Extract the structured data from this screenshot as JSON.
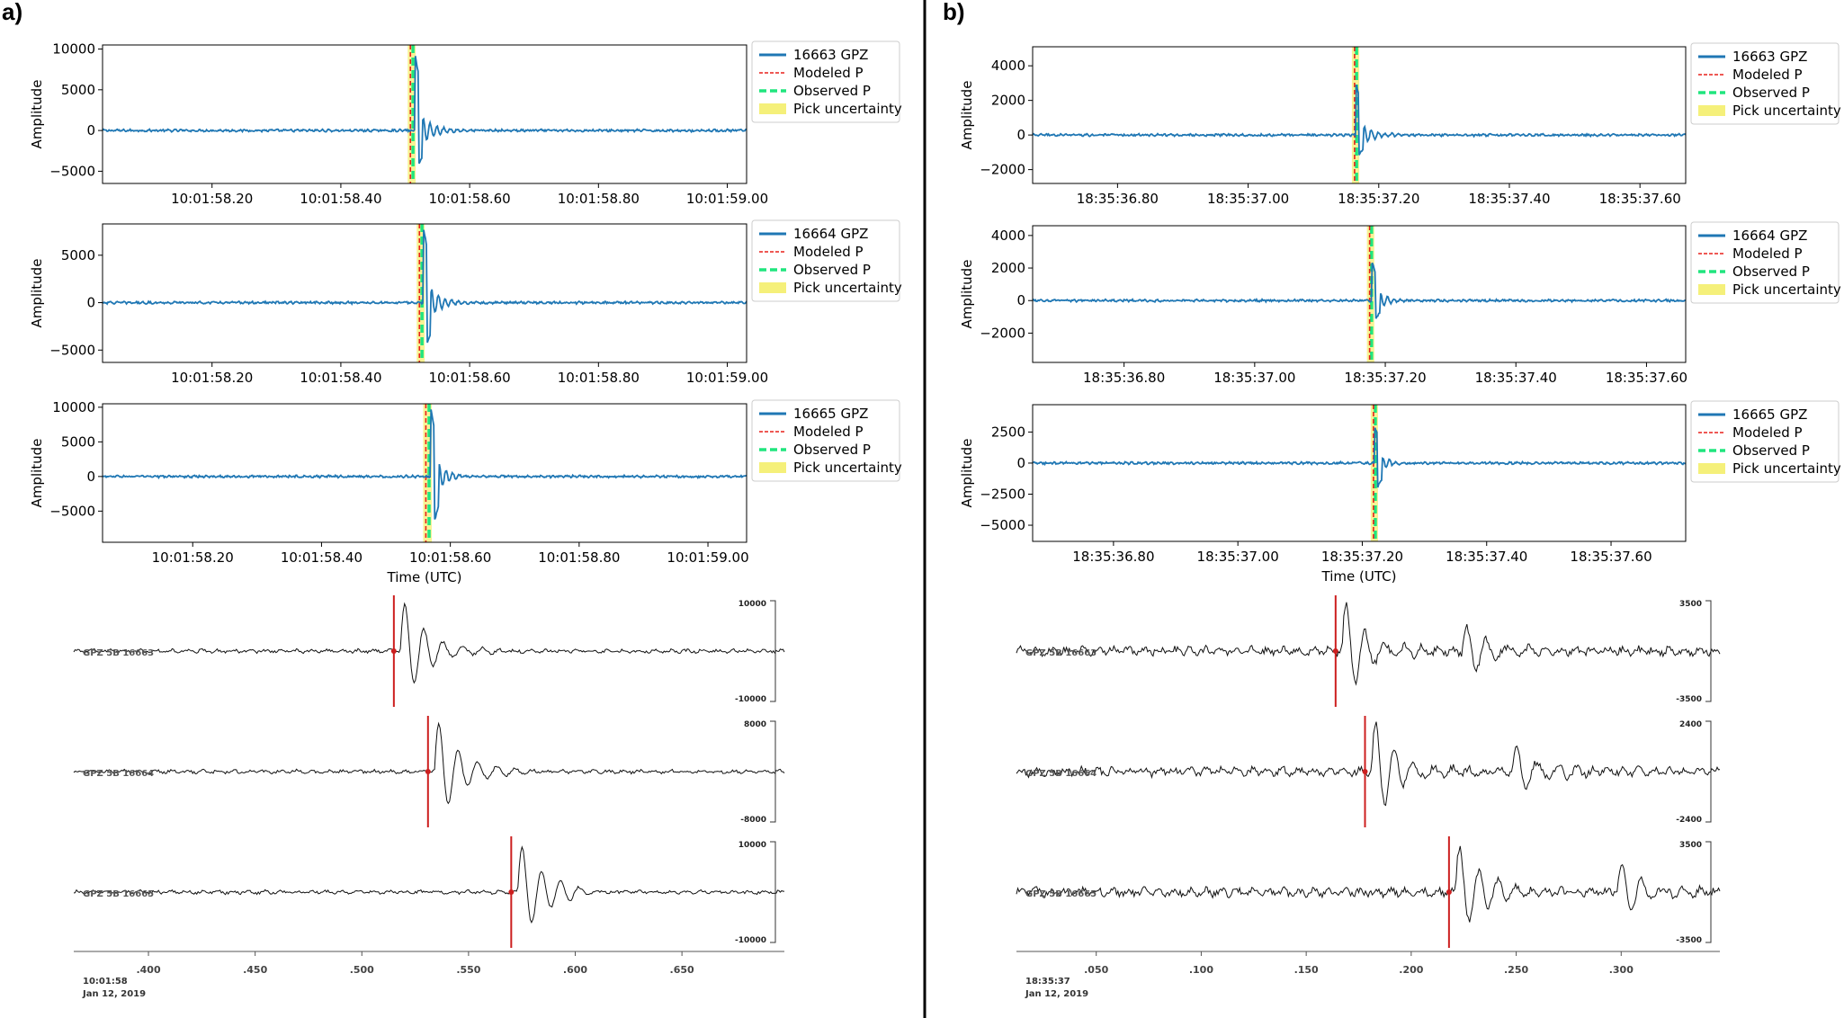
{
  "panels": [
    {
      "label": "a)",
      "chart_data": [
        {
          "type": "line",
          "ylabel": "Amplitude",
          "xlim": [
            "10:01:58.03",
            "10:01:59.03"
          ],
          "ylim": [
            -6500,
            10500
          ],
          "yticks": [
            10000,
            5000,
            0,
            -5000
          ],
          "ytick_labels": [
            "10000",
            "5000",
            "0",
            "−5000"
          ],
          "xticks": [
            "10:01:58.20",
            "10:01:58.40",
            "10:01:58.60",
            "10:01:58.80",
            "10:01:59.00"
          ],
          "xtick_labels": [
            "10:01:58.20",
            "10:01:58.40",
            "10:01:58.60",
            "10:01:58.80",
            "10:01:59.00"
          ],
          "series": [
            {
              "name": "16663 GPZ",
              "color": "#1f77b4",
              "onset_time": "10:01:58.515",
              "peak_amplitude": 9500,
              "trough_amplitude": -6000
            }
          ],
          "modeled_p": "10:01:58.508",
          "observed_p": "10:01:58.512",
          "legend": [
            "16663 GPZ",
            "Modeled P",
            "Observed P",
            "Pick uncertainty"
          ],
          "legend_placement": "outside-right"
        },
        {
          "type": "line",
          "ylabel": "Amplitude",
          "xlim": [
            "10:01:58.03",
            "10:01:59.03"
          ],
          "ylim": [
            -6300,
            8300
          ],
          "yticks": [
            5000,
            0,
            -5000
          ],
          "ytick_labels": [
            "5000",
            "0",
            "−5000"
          ],
          "xticks": [
            "10:01:58.20",
            "10:01:58.40",
            "10:01:58.60",
            "10:01:58.80",
            "10:01:59.00"
          ],
          "xtick_labels": [
            "10:01:58.20",
            "10:01:58.40",
            "10:01:58.60",
            "10:01:58.80",
            "10:01:59.00"
          ],
          "series": [
            {
              "name": "16664 GPZ",
              "color": "#1f77b4",
              "onset_time": "10:01:58.528",
              "peak_amplitude": 8000,
              "trough_amplitude": -6000
            }
          ],
          "modeled_p": "10:01:58.522",
          "observed_p": "10:01:58.526",
          "legend": [
            "16664 GPZ",
            "Modeled P",
            "Observed P",
            "Pick uncertainty"
          ],
          "legend_placement": "outside-right"
        },
        {
          "type": "line",
          "ylabel": "Amplitude",
          "xlim": [
            "10:01:58.06",
            "10:01:59.06"
          ],
          "ylim": [
            -9500,
            10500
          ],
          "yticks": [
            10000,
            5000,
            0,
            -5000
          ],
          "ytick_labels": [
            "10000",
            "5000",
            "0",
            "−5000"
          ],
          "xticks": [
            "10:01:58.20",
            "10:01:58.40",
            "10:01:58.60",
            "10:01:58.80",
            "10:01:59.00"
          ],
          "xtick_labels": [
            "10:01:58.20",
            "10:01:58.40",
            "10:01:58.60",
            "10:01:58.80",
            "10:01:59.00"
          ],
          "xlabel": "Time (UTC)",
          "series": [
            {
              "name": "16665 GPZ",
              "color": "#1f77b4",
              "onset_time": "10:01:58.570",
              "peak_amplitude": 9500,
              "trough_amplitude": -8500
            }
          ],
          "modeled_p": "10:01:58.562",
          "observed_p": "10:01:58.567",
          "legend": [
            "16665 GPZ",
            "Modeled P",
            "Observed P",
            "Pick uncertainty"
          ],
          "legend_placement": "outside-right"
        }
      ],
      "section": {
        "traces": [
          {
            "label": "GPZ 5B 16663",
            "scale_top": "10000",
            "scale_bottom": "-10000",
            "pick": 0.515
          },
          {
            "label": "GPZ 5B 16664",
            "scale_top": "8000",
            "scale_bottom": "-8000",
            "pick": 0.531
          },
          {
            "label": "GPZ 5B 16665",
            "scale_top": "10000",
            "scale_bottom": "-10000",
            "pick": 0.57
          }
        ],
        "xlim": [
          0.365,
          0.698
        ],
        "xticks": [
          0.4,
          0.45,
          0.5,
          0.55,
          0.6,
          0.65
        ],
        "xtick_labels": [
          ".400",
          ".450",
          ".500",
          ".550",
          ".600",
          ".650"
        ],
        "time_label": "10:01:58",
        "date_label": "Jan 12, 2019"
      }
    },
    {
      "label": "b)",
      "chart_data": [
        {
          "type": "line",
          "ylabel": "Amplitude",
          "xlim": [
            "18:35:36.67",
            "18:35:37.67"
          ],
          "ylim": [
            -2800,
            5100
          ],
          "yticks": [
            4000,
            2000,
            0,
            -2000
          ],
          "ytick_labels": [
            "4000",
            "2000",
            "0",
            "−2000"
          ],
          "xticks": [
            "18:35:36.80",
            "18:35:37.00",
            "18:35:37.20",
            "18:35:37.40",
            "18:35:37.60"
          ],
          "xtick_labels": [
            "18:35:36.80",
            "18:35:37.00",
            "18:35:37.20",
            "18:35:37.40",
            "18:35:37.60"
          ],
          "series": [
            {
              "name": "16663 GPZ",
              "color": "#1f77b4",
              "onset_time": "18:35:37.165",
              "peak_amplitude": 3000,
              "trough_amplitude": -1500
            }
          ],
          "modeled_p": "18:35:37.163",
          "observed_p": "18:35:37.166",
          "legend": [
            "16663 GPZ",
            "Modeled P",
            "Observed P",
            "Pick uncertainty"
          ],
          "legend_placement": "outside-right"
        },
        {
          "type": "line",
          "ylabel": "Amplitude",
          "xlim": [
            "18:35:36.66",
            "18:35:37.66"
          ],
          "ylim": [
            -3800,
            4600
          ],
          "yticks": [
            4000,
            2000,
            0,
            -2000
          ],
          "ytick_labels": [
            "4000",
            "2000",
            "0",
            "−2000"
          ],
          "xticks": [
            "18:35:36.80",
            "18:35:37.00",
            "18:35:37.20",
            "18:35:37.40",
            "18:35:37.60"
          ],
          "xtick_labels": [
            "18:35:36.80",
            "18:35:37.00",
            "18:35:37.20",
            "18:35:37.40",
            "18:35:37.60"
          ],
          "series": [
            {
              "name": "16664 GPZ",
              "color": "#1f77b4",
              "onset_time": "18:35:37.180",
              "peak_amplitude": 2300,
              "trough_amplitude": -1500
            }
          ],
          "modeled_p": "18:35:37.176",
          "observed_p": "18:35:37.179",
          "legend": [
            "16664 GPZ",
            "Modeled P",
            "Observed P",
            "Pick uncertainty"
          ],
          "legend_placement": "outside-right"
        },
        {
          "type": "line",
          "ylabel": "Amplitude",
          "xlim": [
            "18:35:36.67",
            "18:35:37.72"
          ],
          "ylim": [
            -6300,
            4700
          ],
          "yticks": [
            2500,
            0,
            -2500,
            -5000
          ],
          "ytick_labels": [
            "2500",
            "0",
            "−2500",
            "−5000"
          ],
          "xticks": [
            "18:35:36.80",
            "18:35:37.00",
            "18:35:37.20",
            "18:35:37.40",
            "18:35:37.60"
          ],
          "xtick_labels": [
            "18:35:36.80",
            "18:35:37.00",
            "18:35:37.20",
            "18:35:37.40",
            "18:35:37.60"
          ],
          "xlabel": "Time (UTC)",
          "series": [
            {
              "name": "16665 GPZ",
              "color": "#1f77b4",
              "onset_time": "18:35:37.220",
              "peak_amplitude": 3000,
              "trough_amplitude": -2500
            }
          ],
          "modeled_p": "18:35:37.218",
          "observed_p": "18:35:37.221",
          "legend": [
            "16665 GPZ",
            "Modeled P",
            "Observed P",
            "Pick uncertainty"
          ],
          "legend_placement": "outside-right"
        }
      ],
      "section": {
        "traces": [
          {
            "label": "GPZ 5B 16663",
            "scale_top": "3500",
            "scale_bottom": "-3500",
            "pick": 0.164
          },
          {
            "label": "GPZ 5B 16664",
            "scale_top": "2400",
            "scale_bottom": "-2400",
            "pick": 0.178
          },
          {
            "label": "GPZ 5B 16665",
            "scale_top": "3500",
            "scale_bottom": "-3500",
            "pick": 0.218
          }
        ],
        "xlim": [
          0.012,
          0.347
        ],
        "xticks": [
          0.05,
          0.1,
          0.15,
          0.2,
          0.25,
          0.3
        ],
        "xtick_labels": [
          ".050",
          ".100",
          ".150",
          ".200",
          ".250",
          ".300"
        ],
        "time_label": "18:35:37",
        "date_label": "Jan 12, 2019"
      }
    }
  ],
  "colors": {
    "trace": "#1f77b4",
    "modeled_p": "#e8201b",
    "observed_p": "#20e57e",
    "uncertainty": "#f5f07a",
    "section_trace": "#111111",
    "section_pick": "#cc1f1f"
  }
}
